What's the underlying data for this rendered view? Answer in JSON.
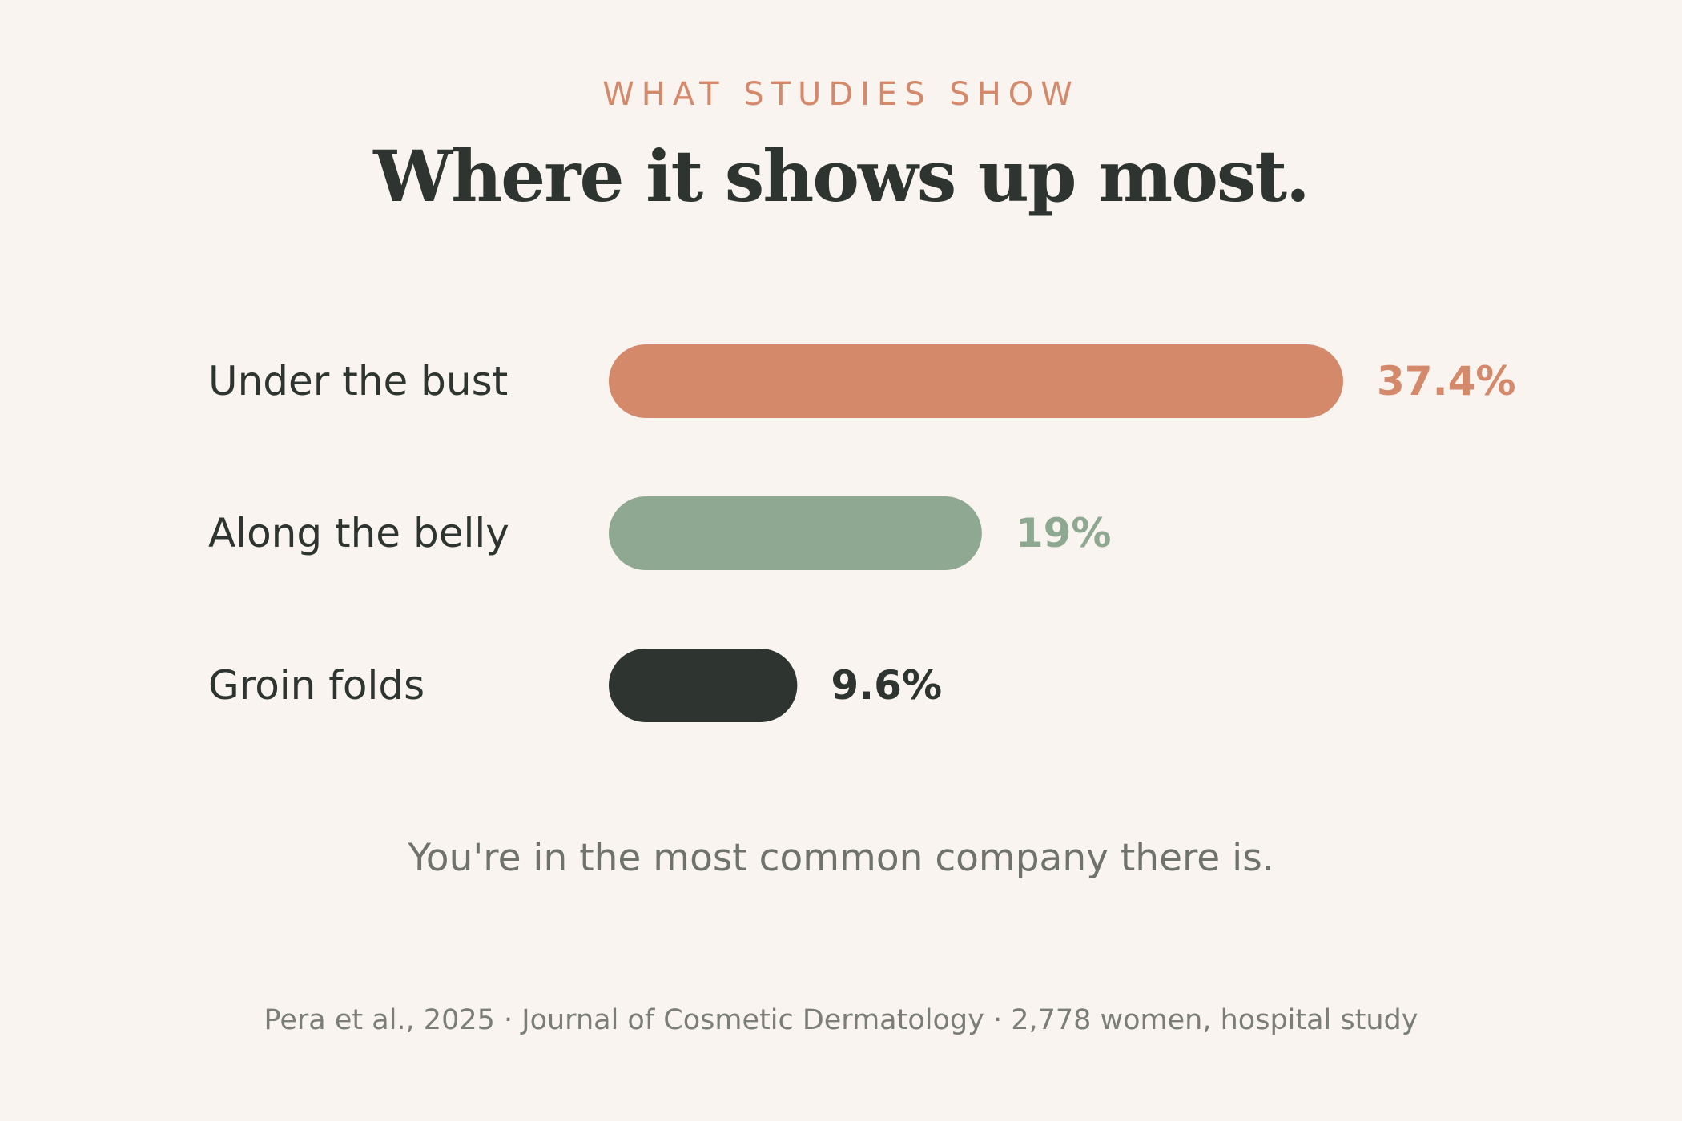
{
  "header": {
    "eyebrow": "WHAT STUDIES SHOW",
    "title": "Where it shows up most."
  },
  "chart_data": {
    "type": "bar",
    "orientation": "horizontal",
    "categories": [
      "Under the bust",
      "Along the belly",
      "Groin folds"
    ],
    "values": [
      37.4,
      19,
      9.6
    ],
    "value_labels": [
      "37.4%",
      "19%",
      "9.6%"
    ],
    "colors": [
      "#d4896b",
      "#8fa891",
      "#2e3530"
    ],
    "xlim": [
      0,
      37.4
    ],
    "grid": false,
    "legend": "none"
  },
  "footer": {
    "tagline": "You're in the most common company there is.",
    "source": "Pera et al., 2025 · Journal of Cosmetic Dermatology · 2,778 women, hospital study"
  }
}
